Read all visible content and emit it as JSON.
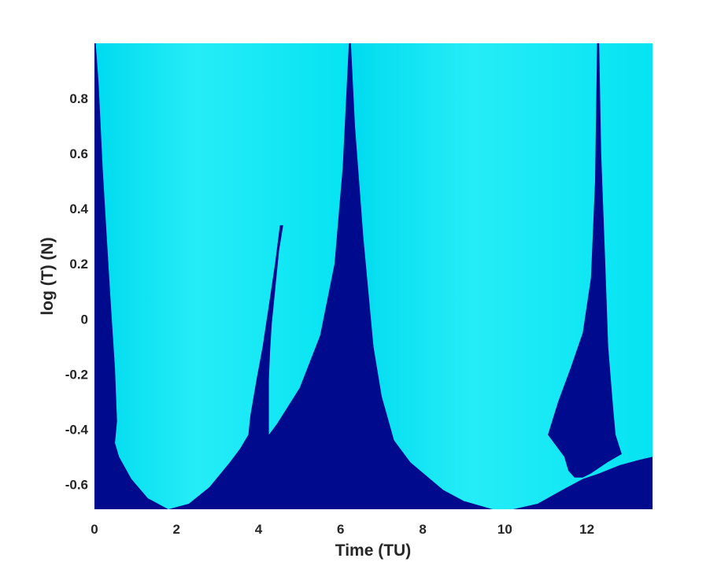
{
  "chart_data": {
    "type": "heatmap",
    "title": "",
    "xlabel": "Time (TU)",
    "ylabel": "log (T) (N)",
    "xlim": [
      0,
      13.6
    ],
    "ylim": [
      -0.69,
      1.0
    ],
    "x_ticks": [
      {
        "value": 0,
        "label": "0"
      },
      {
        "value": 2,
        "label": "2"
      },
      {
        "value": 4,
        "label": "4"
      },
      {
        "value": 6,
        "label": "6"
      },
      {
        "value": 8,
        "label": "8"
      },
      {
        "value": 10,
        "label": "10"
      },
      {
        "value": 12,
        "label": "12"
      }
    ],
    "y_ticks": [
      {
        "value": 0.8,
        "label": "0.8"
      },
      {
        "value": 0.6,
        "label": "0.6"
      },
      {
        "value": 0.4,
        "label": "0.4"
      },
      {
        "value": 0.2,
        "label": "0.2"
      },
      {
        "value": 0,
        "label": "0"
      },
      {
        "value": -0.2,
        "label": "-0.2"
      },
      {
        "value": -0.4,
        "label": "-0.4"
      },
      {
        "value": -0.6,
        "label": "-0.6"
      }
    ],
    "grid": false,
    "colors": {
      "background_region": "#000a8c",
      "region_fill": "#05e3f2",
      "region_fill_light": "#25edf7",
      "region_fill_deep": "#00dbef"
    },
    "regions": [
      {
        "name": "basin-1",
        "points": [
          [
            0.03,
            1.0
          ],
          [
            0.1,
            0.86
          ],
          [
            0.2,
            0.55
          ],
          [
            0.3,
            0.3
          ],
          [
            0.4,
            0.05
          ],
          [
            0.5,
            -0.18
          ],
          [
            0.55,
            -0.37
          ],
          [
            0.5,
            -0.45
          ],
          [
            0.6,
            -0.5
          ],
          [
            0.9,
            -0.58
          ],
          [
            1.3,
            -0.65
          ],
          [
            1.8,
            -0.69
          ],
          [
            2.3,
            -0.67
          ],
          [
            2.8,
            -0.61
          ],
          [
            3.3,
            -0.52
          ],
          [
            3.55,
            -0.47
          ],
          [
            3.75,
            -0.42
          ],
          [
            3.8,
            -0.35
          ],
          [
            3.95,
            -0.22
          ],
          [
            4.1,
            -0.1
          ],
          [
            4.25,
            0.05
          ],
          [
            4.4,
            0.2
          ],
          [
            4.52,
            0.34
          ],
          [
            4.6,
            0.34
          ],
          [
            4.5,
            0.25
          ],
          [
            4.4,
            0.1
          ],
          [
            4.32,
            -0.02
          ],
          [
            4.28,
            -0.12
          ],
          [
            4.25,
            -0.22
          ],
          [
            4.25,
            -0.42
          ],
          [
            4.45,
            -0.38
          ],
          [
            5.0,
            -0.25
          ],
          [
            5.5,
            -0.06
          ],
          [
            5.85,
            0.2
          ],
          [
            6.05,
            0.55
          ],
          [
            6.15,
            0.85
          ],
          [
            6.2,
            1.0
          ]
        ]
      },
      {
        "name": "basin-2",
        "points": [
          [
            6.25,
            1.0
          ],
          [
            6.35,
            0.7
          ],
          [
            6.55,
            0.3
          ],
          [
            6.8,
            -0.1
          ],
          [
            7.0,
            -0.28
          ],
          [
            7.3,
            -0.44
          ],
          [
            7.7,
            -0.52
          ],
          [
            8.1,
            -0.57
          ],
          [
            8.5,
            -0.62
          ],
          [
            9.0,
            -0.66
          ],
          [
            9.7,
            -0.69
          ],
          [
            10.2,
            -0.69
          ],
          [
            10.8,
            -0.67
          ],
          [
            11.4,
            -0.62
          ],
          [
            11.9,
            -0.58
          ],
          [
            12.3,
            -0.56
          ],
          [
            12.8,
            -0.53
          ],
          [
            13.3,
            -0.51
          ],
          [
            13.6,
            -0.5
          ],
          [
            13.6,
            1.0
          ],
          [
            12.3,
            1.0
          ],
          [
            12.35,
            0.6
          ],
          [
            12.45,
            0.2
          ],
          [
            12.52,
            -0.1
          ],
          [
            12.6,
            -0.25
          ],
          [
            12.65,
            -0.34
          ],
          [
            12.7,
            -0.42
          ],
          [
            12.85,
            -0.49
          ],
          [
            12.5,
            -0.52
          ],
          [
            12.1,
            -0.56
          ],
          [
            11.9,
            -0.575
          ],
          [
            11.7,
            -0.575
          ],
          [
            11.55,
            -0.55
          ],
          [
            11.45,
            -0.5
          ],
          [
            11.3,
            -0.47
          ],
          [
            11.05,
            -0.42
          ],
          [
            11.3,
            -0.3
          ],
          [
            11.6,
            -0.18
          ],
          [
            11.9,
            -0.05
          ],
          [
            12.1,
            0.15
          ],
          [
            12.2,
            0.5
          ],
          [
            12.25,
            1.0
          ]
        ]
      }
    ]
  }
}
